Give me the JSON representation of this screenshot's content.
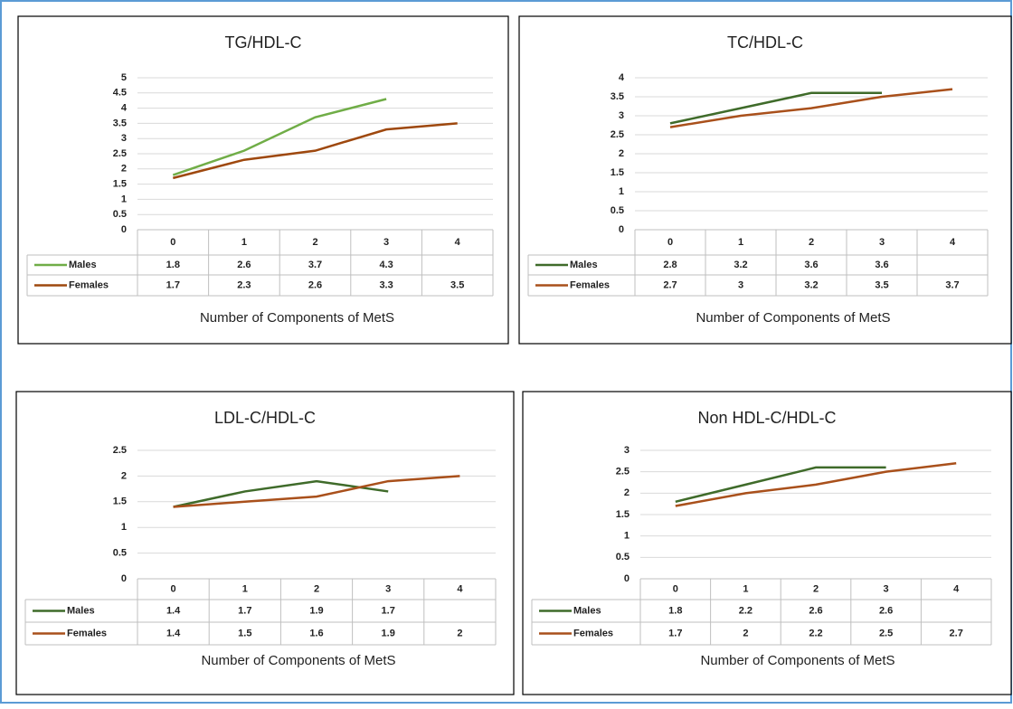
{
  "chart_data": [
    {
      "type": "line",
      "title": "TG/HDL-C",
      "x_label": "Number of Components of MetS",
      "categories": [
        "0",
        "1",
        "2",
        "3",
        "4"
      ],
      "series": [
        {
          "name": "Males",
          "color": "#70ad47",
          "values": [
            1.8,
            2.6,
            3.7,
            4.3,
            null
          ]
        },
        {
          "name": "Females",
          "color": "#9e480e",
          "values": [
            1.7,
            2.3,
            2.6,
            3.3,
            3.5
          ]
        }
      ],
      "ylim": [
        0,
        5
      ],
      "yticks": [
        0,
        0.5,
        1,
        1.5,
        2,
        2.5,
        3,
        3.5,
        4,
        4.5,
        5
      ],
      "grid": true
    },
    {
      "type": "line",
      "title": "TC/HDL-C",
      "x_label": "Number of Components of MetS",
      "categories": [
        "0",
        "1",
        "2",
        "3",
        "4"
      ],
      "series": [
        {
          "name": "Males",
          "color": "#3f6b2a",
          "values": [
            2.8,
            3.2,
            3.6,
            3.6,
            null
          ]
        },
        {
          "name": "Females",
          "color": "#a9501b",
          "values": [
            2.7,
            3,
            3.2,
            3.5,
            3.7
          ]
        }
      ],
      "ylim": [
        0,
        4
      ],
      "yticks": [
        0,
        0.5,
        1,
        1.5,
        2,
        2.5,
        3,
        3.5,
        4
      ],
      "grid": true
    },
    {
      "type": "line",
      "title": "LDL-C/HDL-C",
      "x_label": "Number of Components of MetS",
      "categories": [
        "0",
        "1",
        "2",
        "3",
        "4"
      ],
      "series": [
        {
          "name": "Males",
          "color": "#3f6b2a",
          "values": [
            1.4,
            1.7,
            1.9,
            1.7,
            null
          ]
        },
        {
          "name": "Females",
          "color": "#a9501b",
          "values": [
            1.4,
            1.5,
            1.6,
            1.9,
            2
          ]
        }
      ],
      "ylim": [
        0,
        2.5
      ],
      "yticks": [
        0,
        0.5,
        1,
        1.5,
        2,
        2.5
      ],
      "grid": true
    },
    {
      "type": "line",
      "title": "Non HDL-C/HDL-C",
      "x_label": "Number of Components of MetS",
      "categories": [
        "0",
        "1",
        "2",
        "3",
        "4"
      ],
      "series": [
        {
          "name": "Males",
          "color": "#3f6b2a",
          "values": [
            1.8,
            2.2,
            2.6,
            2.6,
            null
          ]
        },
        {
          "name": "Females",
          "color": "#a9501b",
          "values": [
            1.7,
            2,
            2.2,
            2.5,
            2.7
          ]
        }
      ],
      "ylim": [
        0,
        3
      ],
      "yticks": [
        0,
        0.5,
        1,
        1.5,
        2,
        2.5,
        3
      ],
      "grid": true
    }
  ]
}
